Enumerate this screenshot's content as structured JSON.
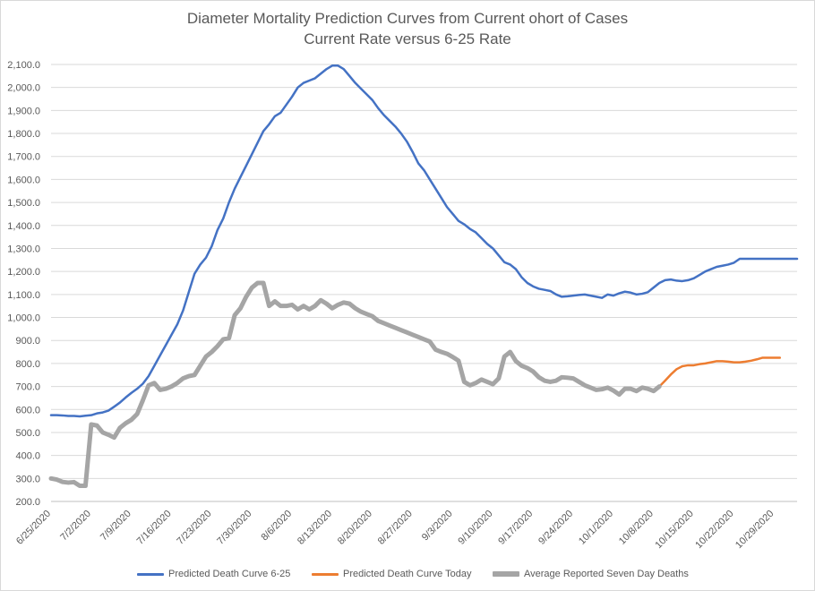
{
  "chart_data": {
    "type": "line",
    "title": "Diameter Mortality Prediction Curves from Current ohort of Cases",
    "subtitle": "Current Rate versus 6-25 Rate",
    "ylim": [
      200,
      2100
    ],
    "y_ticks": [
      "200.0",
      "300.0",
      "400.0",
      "500.0",
      "600.0",
      "700.0",
      "800.0",
      "900.0",
      "1,000.0",
      "1,100.0",
      "1,200.0",
      "1,300.0",
      "1,400.0",
      "1,500.0",
      "1,600.0",
      "1,700.0",
      "1,800.0",
      "1,900.0",
      "2,000.0",
      "2,100.0"
    ],
    "x_ticks": [
      "6/25/2020",
      "7/2/2020",
      "7/9/2020",
      "7/16/2020",
      "7/23/2020",
      "7/30/2020",
      "8/6/2020",
      "8/13/2020",
      "8/20/2020",
      "8/27/2020",
      "9/3/2020",
      "9/10/2020",
      "9/17/2020",
      "9/24/2020",
      "10/1/2020",
      "10/8/2020",
      "10/15/2020",
      "10/22/2020",
      "10/29/2020"
    ],
    "grid": true,
    "legend_position": "bottom",
    "series": [
      {
        "name": "Predicted Death Curve 6-25",
        "color": "#4472c4",
        "width": 2.5,
        "x": [
          0,
          1,
          2,
          3,
          4,
          5,
          6,
          7,
          8,
          9,
          10,
          11,
          12,
          13,
          14,
          15,
          16,
          17,
          18,
          19,
          20,
          21,
          22,
          23,
          24,
          25,
          26,
          27,
          28,
          29,
          30,
          31,
          32,
          33,
          34,
          35,
          36,
          37,
          38,
          39,
          40,
          41,
          42,
          43,
          44,
          45,
          46,
          47,
          48,
          49,
          50,
          51,
          52,
          53,
          54,
          55,
          56,
          57,
          58,
          59,
          60,
          61,
          62,
          63,
          64,
          65,
          66,
          67,
          68,
          69,
          70,
          71,
          72,
          73,
          74,
          75,
          76,
          77,
          78,
          79,
          80,
          81,
          82,
          83,
          84,
          85,
          86,
          87,
          88,
          89,
          90,
          91,
          92,
          93,
          94,
          95,
          96,
          97,
          98,
          99,
          100,
          101,
          102,
          103,
          104,
          105,
          106,
          107,
          108,
          109,
          110,
          111,
          112,
          113,
          114,
          115,
          116,
          117,
          118,
          119,
          120,
          121,
          122,
          123,
          124,
          125,
          126,
          127,
          128,
          129,
          130
        ],
        "y": [
          575,
          575,
          574,
          572,
          572,
          570,
          573,
          575,
          583,
          587,
          595,
          612,
          630,
          652,
          672,
          690,
          712,
          745,
          790,
          835,
          880,
          925,
          970,
          1030,
          1110,
          1190,
          1230,
          1260,
          1310,
          1380,
          1430,
          1500,
          1560,
          1610,
          1660,
          1710,
          1760,
          1810,
          1840,
          1875,
          1890,
          1925,
          1960,
          2000,
          2020,
          2030,
          2040,
          2060,
          2080,
          2095,
          2095,
          2080,
          2050,
          2020,
          1995,
          1970,
          1945,
          1910,
          1880,
          1855,
          1830,
          1800,
          1765,
          1720,
          1670,
          1640,
          1600,
          1560,
          1520,
          1480,
          1450,
          1420,
          1405,
          1385,
          1370,
          1345,
          1320,
          1300,
          1270,
          1240,
          1230,
          1210,
          1175,
          1150,
          1135,
          1125,
          1120,
          1115,
          1100,
          1090,
          1092,
          1095,
          1098,
          1100,
          1095,
          1090,
          1085,
          1100,
          1095,
          1105,
          1112,
          1108,
          1100,
          1103,
          1110,
          1130,
          1150,
          1162,
          1165,
          1160,
          1158,
          1162,
          1170,
          1185,
          1200,
          1210,
          1220,
          1225,
          1230,
          1238,
          1255,
          1255,
          1255,
          1255,
          1255,
          1255,
          1255,
          1255,
          1255,
          1255,
          1255
        ]
      },
      {
        "name": "Predicted Death Curve Today",
        "color": "#ed7d31",
        "width": 2.5,
        "x": [
          106,
          107,
          108,
          109,
          110,
          111,
          112,
          113,
          114,
          115,
          116,
          117,
          118,
          119,
          120,
          121,
          122,
          123,
          124,
          125,
          126,
          127
        ],
        "y": [
          700,
          725,
          752,
          775,
          788,
          792,
          792,
          797,
          800,
          805,
          810,
          810,
          808,
          805,
          805,
          808,
          812,
          818,
          825,
          825,
          825,
          825
        ]
      },
      {
        "name": "Average Reported Seven Day Deaths",
        "color": "#a5a5a5",
        "width": 5,
        "x": [
          0,
          1,
          2,
          3,
          4,
          5,
          6,
          7,
          8,
          9,
          10,
          11,
          12,
          13,
          14,
          15,
          16,
          17,
          18,
          19,
          20,
          21,
          22,
          23,
          24,
          25,
          26,
          27,
          28,
          29,
          30,
          31,
          32,
          33,
          34,
          35,
          36,
          37,
          38,
          39,
          40,
          41,
          42,
          43,
          44,
          45,
          46,
          47,
          48,
          49,
          50,
          51,
          52,
          53,
          54,
          55,
          56,
          57,
          58,
          59,
          60,
          61,
          62,
          63,
          64,
          65,
          66,
          67,
          68,
          69,
          70,
          71,
          72,
          73,
          74,
          75,
          76,
          77,
          78,
          79,
          80,
          81,
          82,
          83,
          84,
          85,
          86,
          87,
          88,
          89,
          90,
          91,
          92,
          93,
          94,
          95,
          96,
          97,
          98,
          99,
          100,
          101,
          102,
          103,
          104,
          105,
          106
        ],
        "y": [
          300,
          295,
          285,
          282,
          284,
          268,
          268,
          535,
          530,
          500,
          490,
          478,
          520,
          540,
          555,
          580,
          640,
          705,
          715,
          685,
          690,
          700,
          715,
          735,
          745,
          750,
          790,
          830,
          850,
          875,
          905,
          910,
          1010,
          1040,
          1090,
          1130,
          1150,
          1150,
          1050,
          1070,
          1050,
          1050,
          1055,
          1035,
          1050,
          1035,
          1050,
          1075,
          1060,
          1040,
          1055,
          1065,
          1060,
          1040,
          1025,
          1015,
          1005,
          985,
          975,
          965,
          955,
          945,
          935,
          925,
          915,
          905,
          895,
          860,
          850,
          842,
          828,
          812,
          720,
          705,
          715,
          730,
          720,
          710,
          735,
          830,
          850,
          810,
          790,
          780,
          765,
          740,
          725,
          720,
          725,
          740,
          738,
          735,
          720,
          705,
          695,
          685,
          688,
          695,
          682,
          665,
          690,
          690,
          680,
          695,
          690,
          680,
          700
        ]
      }
    ]
  }
}
